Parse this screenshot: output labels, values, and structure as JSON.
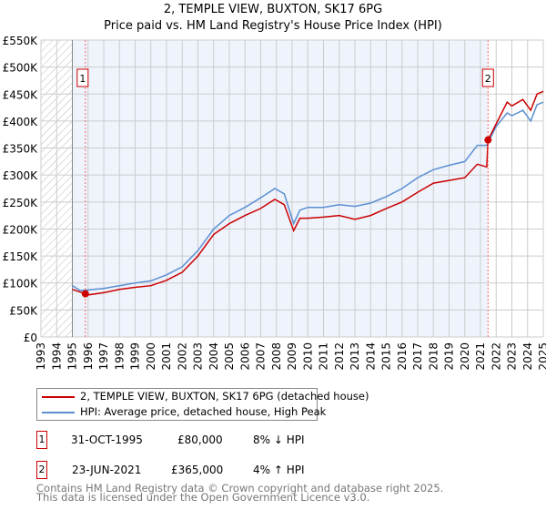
{
  "chart_data": {
    "type": "line",
    "title": "2, TEMPLE VIEW, BUXTON, SK17 6PG",
    "subtitle": "Price paid vs. HM Land Registry's House Price Index (HPI)",
    "xlim": [
      1993,
      2025
    ],
    "ylim": [
      0,
      550000
    ],
    "x_ticks": [
      "1993",
      "1994",
      "1995",
      "1996",
      "1997",
      "1998",
      "1999",
      "2000",
      "2001",
      "2002",
      "2003",
      "2004",
      "2005",
      "2006",
      "2007",
      "2008",
      "2009",
      "2010",
      "2011",
      "2012",
      "2013",
      "2014",
      "2015",
      "2016",
      "2017",
      "2018",
      "2019",
      "2020",
      "2021",
      "2022",
      "2023",
      "2024",
      "2025"
    ],
    "y_ticks": [
      {
        "v": 0,
        "l": "£0"
      },
      {
        "v": 50000,
        "l": "£50K"
      },
      {
        "v": 100000,
        "l": "£100K"
      },
      {
        "v": 150000,
        "l": "£150K"
      },
      {
        "v": 200000,
        "l": "£200K"
      },
      {
        "v": 250000,
        "l": "£250K"
      },
      {
        "v": 300000,
        "l": "£300K"
      },
      {
        "v": 350000,
        "l": "£350K"
      },
      {
        "v": 400000,
        "l": "£400K"
      },
      {
        "v": 450000,
        "l": "£450K"
      },
      {
        "v": 500000,
        "l": "£500K"
      },
      {
        "v": 550000,
        "l": "£550K"
      }
    ],
    "grid": true,
    "series": [
      {
        "name": "2, TEMPLE VIEW, BUXTON, SK17 6PG (detached house)",
        "color": "#cc0000",
        "x": [
          1995,
          1995.83,
          1996,
          1997,
          1998,
          1999,
          2000,
          2001,
          2002,
          2003,
          2004,
          2005,
          2006,
          2007,
          2007.9,
          2008.5,
          2009.1,
          2009.5,
          2010,
          2011,
          2012,
          2013,
          2014,
          2015,
          2016,
          2017,
          2018,
          2019,
          2020,
          2020.8,
          2021.4,
          2021.48,
          2022,
          2022.7,
          2023,
          2023.7,
          2024.2,
          2024.6,
          2025
        ],
        "y": [
          88000,
          80000,
          78000,
          82000,
          88000,
          92000,
          95000,
          105000,
          120000,
          150000,
          190000,
          210000,
          225000,
          238000,
          255000,
          245000,
          197000,
          220000,
          220000,
          222000,
          225000,
          218000,
          225000,
          238000,
          250000,
          268000,
          285000,
          290000,
          295000,
          320000,
          315000,
          365000,
          395000,
          435000,
          428000,
          440000,
          420000,
          450000,
          455000
        ]
      },
      {
        "name": "HPI: Average price, detached house, High Peak",
        "color": "#5b8fd0",
        "x": [
          1995,
          1995.5,
          1996,
          1997,
          1998,
          1999,
          2000,
          2001,
          2002,
          2003,
          2004,
          2005,
          2006,
          2007,
          2007.9,
          2008.5,
          2009.1,
          2009.5,
          2010,
          2011,
          2012,
          2013,
          2014,
          2015,
          2016,
          2017,
          2018,
          2019,
          2020,
          2020.8,
          2021.4,
          2022,
          2022.7,
          2023,
          2023.7,
          2024.2,
          2024.6,
          2025
        ],
        "y": [
          95000,
          86000,
          87000,
          90000,
          95000,
          100000,
          104000,
          115000,
          130000,
          160000,
          200000,
          225000,
          240000,
          258000,
          275000,
          265000,
          210000,
          235000,
          240000,
          240000,
          245000,
          242000,
          248000,
          260000,
          275000,
          295000,
          310000,
          318000,
          325000,
          355000,
          355000,
          390000,
          415000,
          410000,
          420000,
          400000,
          430000,
          435000
        ]
      }
    ],
    "annotations": [
      {
        "label": "1",
        "x": 1995.83,
        "y": 80000
      },
      {
        "label": "2",
        "x": 2021.48,
        "y": 365000
      }
    ],
    "legend_placement": "bottom"
  },
  "legend": [
    "2, TEMPLE VIEW, BUXTON, SK17 6PG (detached house)",
    "HPI: Average price, detached house, High Peak"
  ],
  "transactions": [
    {
      "num": "1",
      "date": "31-OCT-1995",
      "price": "£80,000",
      "hpi": "8% ↓ HPI"
    },
    {
      "num": "2",
      "date": "23-JUN-2021",
      "price": "£365,000",
      "hpi": "4% ↑ HPI"
    }
  ],
  "footer": [
    "Contains HM Land Registry data © Crown copyright and database right 2025.",
    "This data is licensed under the Open Government Licence v3.0."
  ]
}
